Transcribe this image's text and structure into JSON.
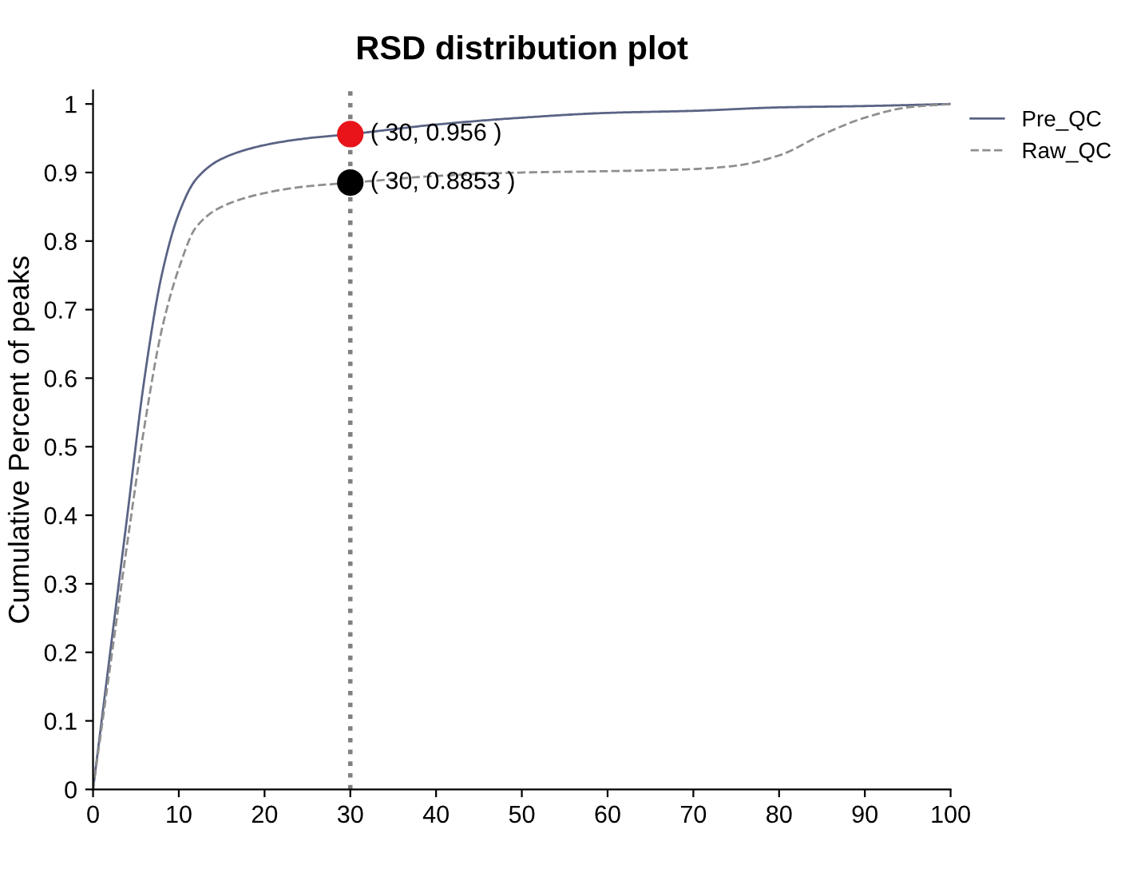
{
  "chart_data": {
    "type": "line",
    "title": "RSD distribution plot",
    "ylabel": "Cumulative Percent of peaks",
    "xlim": [
      0,
      100
    ],
    "xticks": [
      0,
      10,
      20,
      30,
      40,
      50,
      60,
      70,
      80,
      90,
      100
    ],
    "ylim": [
      0,
      1.02
    ],
    "yticks": [
      0,
      0.1,
      0.2,
      0.3,
      0.4,
      0.5,
      0.6,
      0.7,
      0.8,
      0.9,
      1
    ],
    "grid": false,
    "legend": "top right",
    "series": [
      {
        "name": "Pre_QC",
        "color": "#5a6384",
        "line_style": "solid",
        "marker": "none",
        "x": [
          0,
          2,
          4,
          6,
          8,
          10,
          12,
          15,
          20,
          25,
          30,
          40,
          50,
          60,
          70,
          80,
          90,
          100
        ],
        "values": [
          0,
          0.2,
          0.4,
          0.6,
          0.75,
          0.84,
          0.89,
          0.92,
          0.94,
          0.95,
          0.956,
          0.97,
          0.98,
          0.987,
          0.99,
          0.995,
          0.997,
          1
        ]
      },
      {
        "name": "Raw_QC",
        "color": "#8f8f8f",
        "line_style": "dashed",
        "marker": "none",
        "x": [
          0,
          2,
          4,
          6,
          8,
          10,
          12,
          15,
          20,
          25,
          30,
          40,
          50,
          60,
          70,
          75,
          80,
          85,
          90,
          95,
          100
        ],
        "values": [
          0,
          0.18,
          0.36,
          0.53,
          0.67,
          0.76,
          0.82,
          0.85,
          0.87,
          0.88,
          0.885,
          0.895,
          0.9,
          0.902,
          0.905,
          0.91,
          0.925,
          0.955,
          0.98,
          0.995,
          1
        ]
      },
      {
        "type": "scatter",
        "marker": "circle",
        "color": "#e8141a",
        "x": [
          30
        ],
        "values": [
          0.956
        ],
        "value_labels": [
          "( 30, 0.956 )"
        ]
      },
      {
        "type": "scatter",
        "marker": "circle",
        "color": "#000000",
        "x": [
          30
        ],
        "values": [
          0.8853
        ],
        "value_labels": [
          "( 30, 0.8853 )"
        ]
      }
    ],
    "ref_lines": [
      {
        "axis": "x",
        "value": 30,
        "color": "#808080",
        "line_style": "dotted"
      }
    ]
  }
}
